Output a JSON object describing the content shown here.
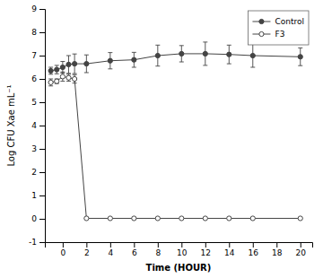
{
  "chart_data": {
    "type": "line",
    "x": [
      -1,
      -0.5,
      0,
      0.5,
      1,
      2,
      4,
      6,
      8,
      10,
      12,
      14,
      16,
      20
    ],
    "series": [
      {
        "name": "Control",
        "color": "#444444",
        "marker": "circle",
        "line_style": "solid",
        "values": [
          6.35,
          6.4,
          6.5,
          6.62,
          6.65,
          6.65,
          6.78,
          6.82,
          7.0,
          7.08,
          7.08,
          7.05,
          7.0,
          6.95
        ],
        "errors": [
          0.15,
          0.18,
          0.25,
          0.38,
          0.42,
          0.38,
          0.35,
          0.32,
          0.45,
          0.35,
          0.5,
          0.4,
          0.5,
          0.38
        ]
      },
      {
        "name": "F3",
        "color": "#444444",
        "marker": "open-circle",
        "line_style": "solid",
        "values": [
          5.85,
          5.9,
          6.1,
          6.05,
          6.0,
          0.02,
          0.02,
          0.02,
          0.02,
          0.02,
          0.02,
          0.02,
          0.02,
          0.02
        ],
        "errors": [
          0.15,
          0.1,
          0.2,
          0.15,
          0.18,
          0.0,
          0.0,
          0.0,
          0.0,
          0.0,
          0.0,
          0.0,
          0.0,
          0.0
        ]
      }
    ],
    "xlim": [
      -1.5,
      21.0
    ],
    "ylim": [
      -1,
      9
    ],
    "xticks": [
      0,
      2,
      4,
      6,
      8,
      10,
      12,
      14,
      16,
      18,
      20
    ],
    "yticks": [
      -1,
      0,
      1,
      2,
      3,
      4,
      5,
      6,
      7,
      8,
      9
    ],
    "xlabel": "Time (HOUR)",
    "ylabel": "Log CFU Xae mL⁻¹",
    "legend": "upper right",
    "grid": false
  }
}
